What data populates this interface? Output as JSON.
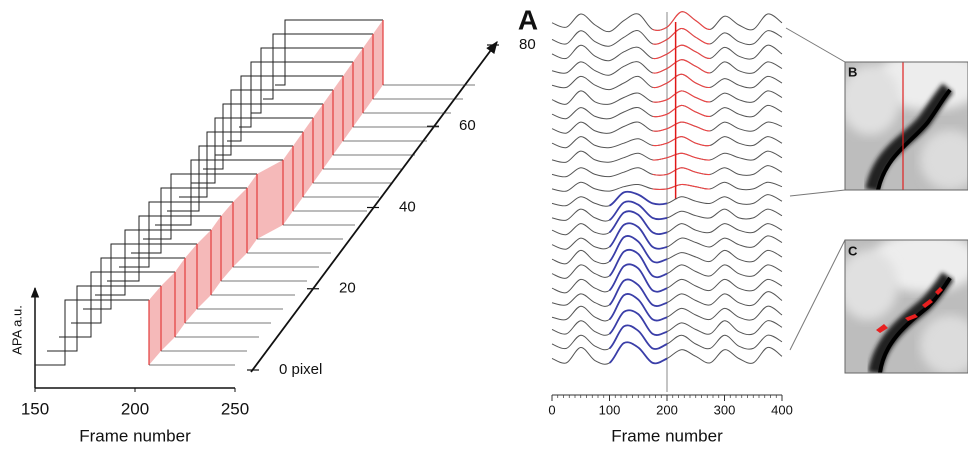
{
  "chart_data": [
    {
      "type": "waterfall",
      "xlabel": "Frame number",
      "ylabel": "APA a.u.",
      "xlim": [
        150,
        250
      ],
      "xticks": [
        150,
        200,
        250
      ],
      "ylim": [
        0,
        1.3
      ],
      "levels": [
        0,
        1
      ],
      "zlim": [
        0,
        80
      ],
      "zticks": [
        {
          "value": 0,
          "label": "0 pixel"
        },
        20,
        40,
        60,
        80
      ],
      "x": [
        0,
        4,
        8,
        12,
        16,
        20,
        24,
        28,
        32,
        36,
        40,
        44,
        48,
        52,
        56,
        60,
        64,
        68,
        72,
        76,
        80
      ],
      "series": [
        {
          "color": "#222222",
          "values": [
            165,
            165,
            166,
            165,
            164,
            165,
            166,
            165,
            165,
            164,
            168,
            166,
            164,
            162,
            160,
            158,
            157,
            156,
            155,
            155,
            155
          ]
        },
        {
          "color": "#e23c3c",
          "values": [
            207,
            207,
            208,
            207,
            207,
            208,
            207,
            207,
            208,
            207,
            214,
            213,
            212,
            211,
            210,
            209,
            208,
            207,
            206,
            205,
            204
          ]
        }
      ]
    },
    {
      "type": "stacked-lines",
      "panel_label": "A",
      "xlabel": "Frame number",
      "xlim": [
        0,
        400
      ],
      "xticks": [
        0,
        100,
        200,
        300,
        400
      ],
      "xminorticks": [
        0,
        10,
        20,
        30,
        40,
        50,
        60,
        70,
        80,
        90,
        100,
        110,
        120,
        130,
        140,
        150,
        160,
        170,
        180,
        190,
        200,
        210,
        220,
        230,
        240,
        250,
        260,
        270,
        280,
        290,
        300,
        310,
        320,
        330,
        340,
        350,
        360,
        370,
        380,
        390,
        400
      ],
      "vline": {
        "x": 200,
        "color": "#888888"
      },
      "x": [
        0,
        25,
        50,
        75,
        100,
        125,
        150,
        175,
        200,
        225,
        250,
        275,
        300,
        325,
        350,
        375,
        400
      ],
      "groups": [
        {
          "color": "#555555",
          "highlight_color": "#ee4444",
          "highlight_x": [
            175,
            275
          ],
          "marker": {
            "x": 215,
            "color": "#e01818"
          },
          "series": [
            {
              "values": [
                0.6,
                0.4,
                1.0,
                0.5,
                0.2,
                0.7,
                1.0,
                0.3,
                0.4,
                1.1,
                0.7,
                0.3,
                0.9,
                0.5,
                0.3,
                1.0,
                0.6
              ]
            },
            {
              "values": [
                0.5,
                0.3,
                0.9,
                0.4,
                0.2,
                0.6,
                0.9,
                0.3,
                0.5,
                1.0,
                0.6,
                0.3,
                0.8,
                0.4,
                0.3,
                0.9,
                0.6
              ]
            },
            {
              "values": [
                0.5,
                0.3,
                0.9,
                0.4,
                0.2,
                0.6,
                0.8,
                0.3,
                0.5,
                0.9,
                0.6,
                0.3,
                0.8,
                0.4,
                0.3,
                0.9,
                0.5
              ]
            },
            {
              "values": [
                0.4,
                0.3,
                0.8,
                0.4,
                0.2,
                0.6,
                0.8,
                0.3,
                0.5,
                0.9,
                0.6,
                0.3,
                0.8,
                0.4,
                0.3,
                0.8,
                0.5
              ]
            },
            {
              "values": [
                0.4,
                0.3,
                0.8,
                0.4,
                0.2,
                0.5,
                0.8,
                0.3,
                0.5,
                0.9,
                0.5,
                0.3,
                0.7,
                0.4,
                0.3,
                0.8,
                0.5
              ]
            },
            {
              "values": [
                0.4,
                0.2,
                0.8,
                0.3,
                0.2,
                0.5,
                0.7,
                0.3,
                0.4,
                0.8,
                0.5,
                0.3,
                0.7,
                0.4,
                0.3,
                0.8,
                0.5
              ]
            },
            {
              "values": [
                0.4,
                0.2,
                0.7,
                0.3,
                0.2,
                0.5,
                0.7,
                0.3,
                0.4,
                0.8,
                0.5,
                0.3,
                0.7,
                0.4,
                0.3,
                0.8,
                0.5
              ]
            },
            {
              "values": [
                0.4,
                0.2,
                0.7,
                0.3,
                0.2,
                0.5,
                0.7,
                0.3,
                0.4,
                0.7,
                0.5,
                0.3,
                0.7,
                0.4,
                0.3,
                0.7,
                0.5
              ]
            },
            {
              "values": [
                0.4,
                0.2,
                0.7,
                0.3,
                0.2,
                0.4,
                0.6,
                0.3,
                0.4,
                0.7,
                0.4,
                0.3,
                0.7,
                0.4,
                0.3,
                0.7,
                0.4
              ]
            },
            {
              "values": [
                0.3,
                0.2,
                0.7,
                0.3,
                0.2,
                0.4,
                0.6,
                0.3,
                0.4,
                0.6,
                0.4,
                0.3,
                0.6,
                0.4,
                0.3,
                0.7,
                0.4
              ]
            },
            {
              "values": [
                0.3,
                0.2,
                0.6,
                0.3,
                0.2,
                0.4,
                0.6,
                0.3,
                0.3,
                0.6,
                0.4,
                0.3,
                0.6,
                0.3,
                0.3,
                0.7,
                0.4
              ]
            },
            {
              "values": [
                0.3,
                0.2,
                0.6,
                0.3,
                0.2,
                0.4,
                0.5,
                0.3,
                0.3,
                0.5,
                0.4,
                0.3,
                0.6,
                0.3,
                0.3,
                0.6,
                0.4
              ]
            }
          ]
        },
        {
          "color": "#555555",
          "highlight_color": "#3a3ea8",
          "highlight_x": [
            100,
            200
          ],
          "series": [
            {
              "values": [
                0.3,
                0.2,
                0.6,
                0.3,
                0.2,
                0.8,
                0.7,
                0.3,
                0.3,
                0.6,
                0.4,
                0.3,
                0.6,
                0.3,
                0.3,
                0.7,
                0.4
              ]
            },
            {
              "values": [
                0.3,
                0.2,
                0.7,
                0.3,
                0.2,
                1.0,
                0.9,
                0.3,
                0.3,
                0.6,
                0.4,
                0.3,
                0.7,
                0.3,
                0.3,
                0.7,
                0.4
              ]
            },
            {
              "values": [
                0.4,
                0.2,
                0.7,
                0.3,
                0.3,
                1.2,
                1.1,
                0.3,
                0.3,
                0.7,
                0.4,
                0.3,
                0.7,
                0.4,
                0.3,
                0.7,
                0.4
              ]
            },
            {
              "values": [
                0.4,
                0.2,
                0.7,
                0.3,
                0.3,
                1.3,
                1.2,
                0.3,
                0.3,
                0.7,
                0.5,
                0.3,
                0.7,
                0.4,
                0.3,
                0.8,
                0.5
              ]
            },
            {
              "values": [
                0.4,
                0.2,
                0.8,
                0.3,
                0.3,
                1.4,
                1.2,
                0.3,
                0.4,
                0.7,
                0.5,
                0.3,
                0.8,
                0.4,
                0.3,
                0.8,
                0.5
              ]
            },
            {
              "values": [
                0.4,
                0.2,
                0.8,
                0.4,
                0.3,
                1.4,
                1.3,
                0.3,
                0.4,
                0.8,
                0.5,
                0.3,
                0.8,
                0.4,
                0.3,
                0.8,
                0.5
              ]
            },
            {
              "values": [
                0.4,
                0.2,
                0.8,
                0.4,
                0.3,
                1.4,
                1.3,
                0.3,
                0.4,
                0.8,
                0.5,
                0.3,
                0.8,
                0.4,
                0.3,
                0.8,
                0.5
              ]
            },
            {
              "values": [
                0.4,
                0.3,
                0.8,
                0.4,
                0.3,
                1.4,
                1.2,
                0.3,
                0.4,
                0.8,
                0.5,
                0.3,
                0.8,
                0.4,
                0.3,
                0.9,
                0.5
              ]
            },
            {
              "values": [
                0.4,
                0.3,
                0.9,
                0.4,
                0.3,
                1.4,
                1.2,
                0.3,
                0.4,
                0.8,
                0.5,
                0.3,
                0.8,
                0.4,
                0.3,
                0.9,
                0.5
              ]
            },
            {
              "values": [
                0.5,
                0.3,
                0.9,
                0.4,
                0.3,
                1.3,
                1.2,
                0.3,
                0.4,
                0.8,
                0.5,
                0.3,
                0.9,
                0.4,
                0.3,
                0.9,
                0.6
              ]
            },
            {
              "values": [
                0.5,
                0.3,
                0.9,
                0.4,
                0.3,
                1.3,
                1.1,
                0.3,
                0.5,
                0.9,
                0.5,
                0.3,
                0.9,
                0.4,
                0.3,
                0.9,
                0.6
              ]
            },
            {
              "values": [
                0.5,
                0.3,
                1.0,
                0.4,
                0.3,
                1.2,
                1.0,
                0.3,
                0.5,
                0.9,
                0.6,
                0.3,
                0.9,
                0.5,
                0.3,
                1.0,
                0.6
              ]
            }
          ]
        }
      ]
    }
  ],
  "insets": [
    {
      "label": "B"
    },
    {
      "label": "C"
    }
  ]
}
